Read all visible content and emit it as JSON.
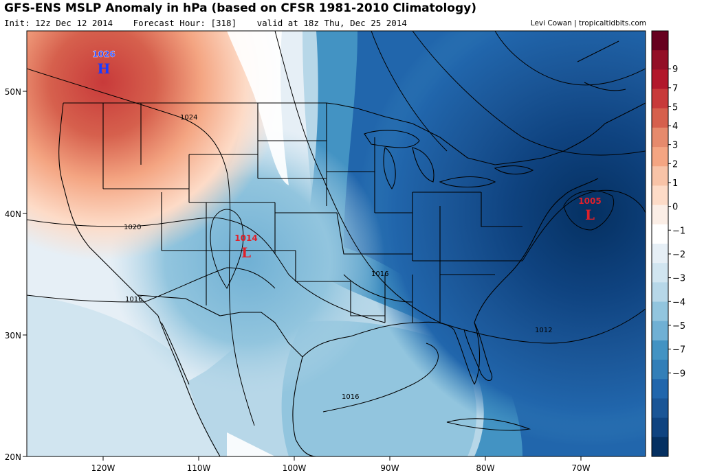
{
  "header": {
    "title": "GFS-ENS MSLP Anomaly in hPa (based on CFSR 1981-2010 Climatology)",
    "init": "Init: 12z Dec 12 2014",
    "forecast_hour": "Forecast Hour: [318]",
    "valid": "valid at 18z Thu, Dec 25 2014",
    "credit": "Levi Cowan | tropicaltidbits.com"
  },
  "map": {
    "lon_labels": [
      "120W",
      "110W",
      "100W",
      "90W",
      "80W",
      "70W"
    ],
    "lat_labels": [
      "50N",
      "40N",
      "30N",
      "20N"
    ],
    "isobar_labels": [
      "1024",
      "1020",
      "1016",
      "1016",
      "1012",
      "1016"
    ],
    "pressure_centers": [
      {
        "value": "1026",
        "symbol": "H",
        "color": "#1a3cff"
      },
      {
        "value": "1014",
        "symbol": "L",
        "color": "#e0202a"
      },
      {
        "value": "1005",
        "symbol": "L",
        "color": "#e0202a"
      }
    ]
  },
  "colorbar": {
    "labels": [
      "9",
      "7",
      "5",
      "4",
      "3",
      "2",
      "1",
      "0",
      "−1",
      "−2",
      "−3",
      "−4",
      "−5",
      "−7",
      "−9"
    ],
    "colors": [
      "#67001f",
      "#930f26",
      "#b2182b",
      "#c83a3a",
      "#d6604d",
      "#e68a6c",
      "#f4a582",
      "#f8c3a7",
      "#fddbc7",
      "#fbeee6",
      "#ffffff",
      "#e6eff6",
      "#d1e5f0",
      "#b7d7e8",
      "#92c5de",
      "#70b0d4",
      "#4393c3",
      "#337fb8",
      "#2166ac",
      "#1a5596",
      "#0f4380",
      "#053061"
    ]
  }
}
